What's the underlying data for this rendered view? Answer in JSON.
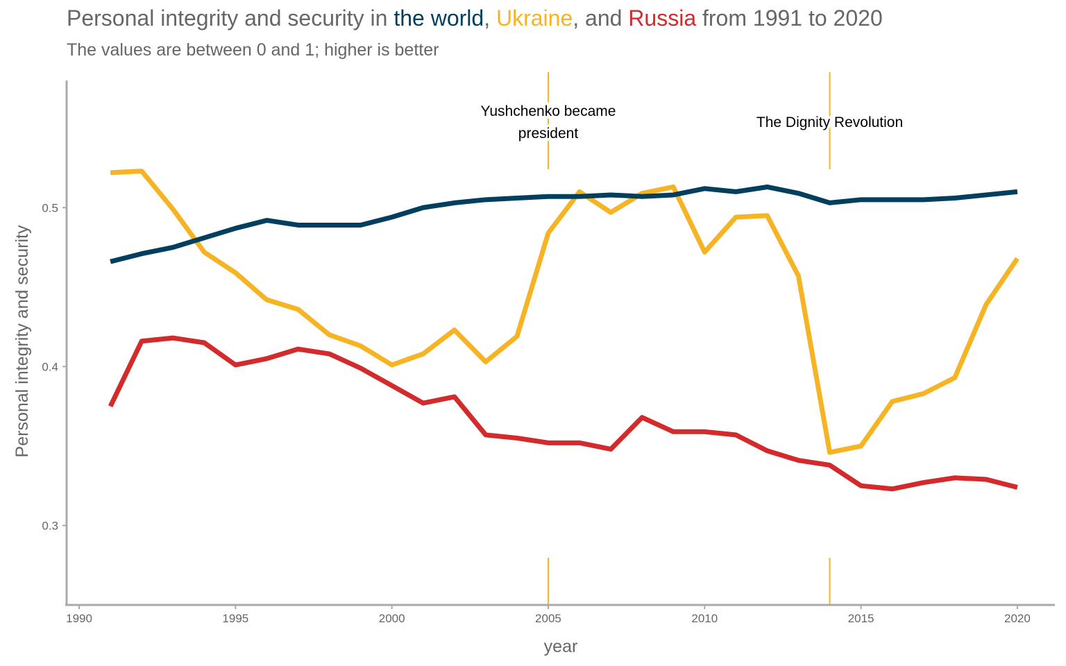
{
  "title": {
    "prefix": "Personal integrity and security in ",
    "world": "the world",
    "sep1": ", ",
    "ukraine": "Ukraine",
    "sep2": ", and ",
    "russia": "Russia",
    "suffix": " from 1991 to 2020"
  },
  "subtitle": "The values are between 0 and 1; higher is better",
  "chart_data": {
    "type": "line",
    "xlabel": "year",
    "ylabel": "Personal integrity and security",
    "xlim": [
      1989.6,
      2021.2
    ],
    "ylim": [
      0.25,
      0.58
    ],
    "x_ticks": [
      "1990",
      "1995",
      "2000",
      "2005",
      "2010",
      "2015",
      "2020"
    ],
    "y_ticks": [
      "0.3",
      "0.4",
      "0.5"
    ],
    "grid": false,
    "legend": "none",
    "x": [
      1991,
      1992,
      1993,
      1994,
      1995,
      1996,
      1997,
      1998,
      1999,
      2000,
      2001,
      2002,
      2003,
      2004,
      2005,
      2006,
      2007,
      2008,
      2009,
      2010,
      2011,
      2012,
      2013,
      2014,
      2015,
      2016,
      2017,
      2018,
      2019,
      2020
    ],
    "series": [
      {
        "name": "the world",
        "color": "#023f5f",
        "values": [
          0.466,
          0.471,
          0.475,
          0.481,
          0.487,
          0.492,
          0.489,
          0.489,
          0.489,
          0.494,
          0.5,
          0.503,
          0.505,
          0.506,
          0.507,
          0.507,
          0.508,
          0.507,
          0.508,
          0.512,
          0.51,
          0.513,
          0.509,
          0.503,
          0.505,
          0.505,
          0.505,
          0.506,
          0.508,
          0.51
        ]
      },
      {
        "name": "Ukraine",
        "color": "#f6b425",
        "values": [
          0.522,
          0.523,
          0.499,
          0.472,
          0.459,
          0.442,
          0.436,
          0.42,
          0.413,
          0.401,
          0.408,
          0.423,
          0.403,
          0.419,
          0.484,
          0.51,
          0.497,
          0.509,
          0.513,
          0.472,
          0.494,
          0.495,
          0.457,
          0.346,
          0.35,
          0.378,
          0.383,
          0.393,
          0.439,
          0.468
        ]
      },
      {
        "name": "Russia",
        "color": "#d32a2c",
        "values": [
          0.375,
          0.416,
          0.418,
          0.415,
          0.401,
          0.405,
          0.411,
          0.408,
          0.399,
          0.388,
          0.377,
          0.381,
          0.357,
          0.355,
          0.352,
          0.352,
          0.348,
          0.368,
          0.359,
          0.359,
          0.357,
          0.347,
          0.341,
          0.338,
          0.325,
          0.323,
          0.327,
          0.33,
          0.329,
          0.324
        ]
      }
    ],
    "annotations": [
      {
        "x": 2005,
        "lines": [
          "Yushchenko became",
          "president"
        ],
        "color": "#f6b425"
      },
      {
        "x": 2014,
        "lines": [
          "The Dignity Revolution"
        ],
        "color": "#f6b425"
      }
    ]
  }
}
